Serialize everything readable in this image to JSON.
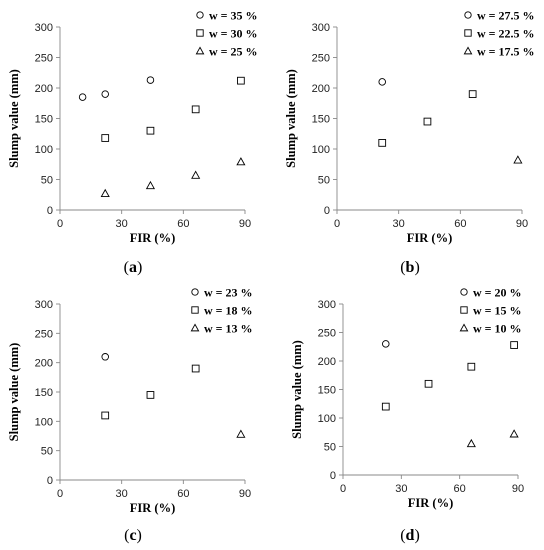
{
  "chart_data": [
    {
      "type": "scatter",
      "caption": "a",
      "xlabel": "FIR (%)",
      "ylabel": "Slump value (mm)",
      "xlim": [
        0,
        90
      ],
      "ylim": [
        0,
        300
      ],
      "xticks": [
        "0",
        "30",
        "60",
        "90"
      ],
      "yticks": [
        "0",
        "50",
        "100",
        "150",
        "200",
        "250",
        "300"
      ],
      "legend_position": "top-right",
      "series": [
        {
          "name": "w = 35 %",
          "marker": "circle",
          "x": [
            11,
            22,
            44
          ],
          "y": [
            185,
            190,
            213
          ]
        },
        {
          "name": "w = 30 %",
          "marker": "square",
          "x": [
            22,
            44,
            66,
            88
          ],
          "y": [
            118,
            130,
            165,
            212
          ]
        },
        {
          "name": "w = 25 %",
          "marker": "triangle",
          "x": [
            22,
            44,
            66,
            88
          ],
          "y": [
            27,
            40,
            57,
            79
          ]
        }
      ]
    },
    {
      "type": "scatter",
      "caption": "b",
      "xlabel": "FIR (%)",
      "ylabel": "Slump value (mm)",
      "xlim": [
        0,
        90
      ],
      "ylim": [
        0,
        300
      ],
      "xticks": [
        "0",
        "30",
        "60",
        "90"
      ],
      "yticks": [
        "0",
        "50",
        "100",
        "150",
        "200",
        "250",
        "300"
      ],
      "legend_position": "top-right",
      "series": [
        {
          "name": "w = 27.5 %",
          "marker": "circle",
          "x": [
            22
          ],
          "y": [
            210
          ]
        },
        {
          "name": "w = 22.5 %",
          "marker": "square",
          "x": [
            22,
            44,
            66
          ],
          "y": [
            110,
            145,
            190
          ]
        },
        {
          "name": "w = 17.5 %",
          "marker": "triangle",
          "x": [
            88
          ],
          "y": [
            82
          ]
        }
      ]
    },
    {
      "type": "scatter",
      "caption": "c",
      "xlabel": "FIR (%)",
      "ylabel": "Slump value (mm)",
      "xlim": [
        0,
        90
      ],
      "ylim": [
        0,
        300
      ],
      "xticks": [
        "0",
        "30",
        "60",
        "90"
      ],
      "yticks": [
        "0",
        "50",
        "100",
        "150",
        "200",
        "250",
        "300"
      ],
      "legend_position": "top-right",
      "series": [
        {
          "name": "w = 23 %",
          "marker": "circle",
          "x": [
            22
          ],
          "y": [
            210
          ]
        },
        {
          "name": "w = 18 %",
          "marker": "square",
          "x": [
            22,
            44,
            66
          ],
          "y": [
            110,
            145,
            190
          ]
        },
        {
          "name": "w = 13 %",
          "marker": "triangle",
          "x": [
            88
          ],
          "y": [
            78
          ]
        }
      ]
    },
    {
      "type": "scatter",
      "caption": "d",
      "xlabel": "FIR (%)",
      "ylabel": "Slump value (mm)",
      "xlim": [
        0,
        90
      ],
      "ylim": [
        0,
        300
      ],
      "xticks": [
        "0",
        "30",
        "60",
        "90"
      ],
      "yticks": [
        "0",
        "50",
        "100",
        "150",
        "200",
        "250",
        "300"
      ],
      "legend_position": "top-right",
      "series": [
        {
          "name": "w = 20 %",
          "marker": "circle",
          "x": [
            22
          ],
          "y": [
            230
          ]
        },
        {
          "name": "w = 15 %",
          "marker": "square",
          "x": [
            22,
            44,
            66,
            88
          ],
          "y": [
            120,
            160,
            190,
            228
          ]
        },
        {
          "name": "w = 10 %",
          "marker": "triangle",
          "x": [
            66,
            88
          ],
          "y": [
            55,
            72
          ]
        }
      ]
    }
  ]
}
